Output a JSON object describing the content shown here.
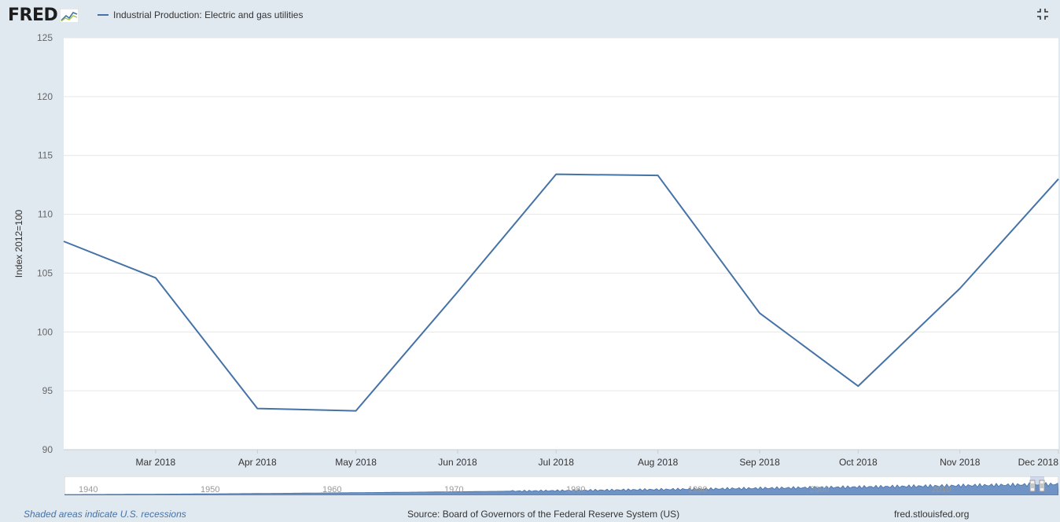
{
  "header": {
    "logo_text": "FRED",
    "legend_label": "Industrial Production: Electric and gas utilities",
    "fullscreen_icon": "fullscreen-exit-icon"
  },
  "footer": {
    "recessions_note": "Shaded areas indicate U.S. recessions",
    "source": "Source: Board of Governors of the Federal Reserve System (US)",
    "site": "fred.stlouisfed.org"
  },
  "colors": {
    "series": "#4572a7",
    "background": "#e1e9f0",
    "plot": "#ffffff",
    "grid": "#e6e6e6"
  },
  "chart_data": {
    "type": "line",
    "ylabel": "Index 2012=100",
    "ylim": [
      90,
      125
    ],
    "yticks": [
      90,
      95,
      100,
      105,
      110,
      115,
      120,
      125
    ],
    "x_tick_labels": [
      "Mar 2018",
      "Apr 2018",
      "May 2018",
      "Jun 2018",
      "Jul 2018",
      "Aug 2018",
      "Sep 2018",
      "Oct 2018",
      "Nov 2018",
      "Dec 2018"
    ],
    "grid": true,
    "series": [
      {
        "name": "Industrial Production: Electric and gas utilities",
        "x": [
          "2018-02",
          "2018-03",
          "2018-04",
          "2018-05",
          "2018-06",
          "2018-07",
          "2018-08",
          "2018-09",
          "2018-10",
          "2018-11",
          "2018-12"
        ],
        "values": [
          107.7,
          104.6,
          93.5,
          93.3,
          103.4,
          113.4,
          113.3,
          101.6,
          95.4,
          103.7,
          113.0
        ]
      }
    ],
    "navigator": {
      "x_tick_labels": [
        "1940",
        "1950",
        "1960",
        "1970",
        "1980",
        "1990",
        "2000",
        "2010"
      ]
    }
  }
}
